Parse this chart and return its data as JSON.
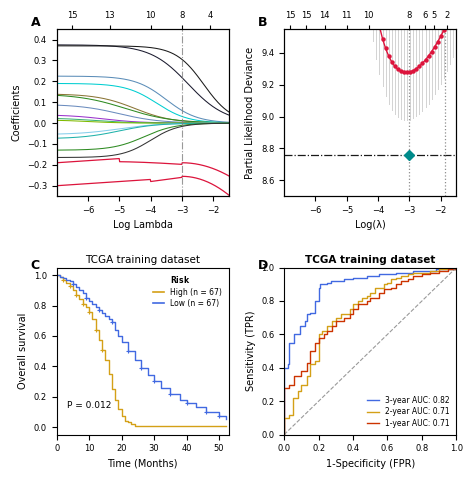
{
  "panel_A": {
    "title": "A",
    "xlabel": "Log Lambda",
    "ylabel": "Coefficients",
    "xlim": [
      -7,
      -1.5
    ],
    "ylim": [
      -0.35,
      0.45
    ],
    "top_axis_labels": [
      "15",
      "13",
      "10",
      "8",
      "4"
    ],
    "top_axis_positions": [
      -6.5,
      -5.3,
      -4.0,
      -3.0,
      -2.1
    ],
    "vline_x": -3.0,
    "xticks": [
      -6,
      -5,
      -4,
      -3,
      -2
    ],
    "yticks": [
      -0.3,
      -0.2,
      -0.1,
      0.0,
      0.1,
      0.2,
      0.3,
      0.4
    ]
  },
  "panel_B": {
    "title": "B",
    "xlabel": "Log(λ)",
    "ylabel": "Partial Likelihood Deviance",
    "xlim": [
      -7,
      -1.5
    ],
    "ylim": [
      8.5,
      9.55
    ],
    "top_axis_labels": [
      "15",
      "15",
      "14",
      "11",
      "10",
      "8",
      "6",
      "5",
      "2"
    ],
    "top_axis_positions": [
      -6.8,
      -6.3,
      -5.7,
      -5.0,
      -4.3,
      -3.0,
      -2.5,
      -2.2,
      -1.8
    ],
    "vline1_x": -3.0,
    "vline2_x": -1.85,
    "hline_y": 8.76,
    "dot_x": -3.0,
    "dot_y": 8.76,
    "xticks": [
      -6,
      -5,
      -4,
      -3,
      -2
    ],
    "yticks": [
      8.6,
      8.8,
      9.0,
      9.2,
      9.4
    ]
  },
  "panel_C": {
    "title": "TCGA training dataset",
    "panel_label": "C",
    "xlabel": "Time (Months)",
    "ylabel": "Overall survival",
    "xlim": [
      0,
      53
    ],
    "ylim": [
      -0.05,
      1.05
    ],
    "xticks": [
      0,
      10,
      20,
      30,
      40,
      50
    ],
    "yticks": [
      0.0,
      0.2,
      0.4,
      0.6,
      0.8,
      1.0
    ],
    "pvalue": "P = 0.012",
    "legend_title": "Risk",
    "high_label": "High (n = 67)",
    "low_label": "Low (n = 67)",
    "high_color": "#D4A017",
    "low_color": "#4169E1"
  },
  "panel_D": {
    "title": "TCGA training dataset",
    "panel_label": "D",
    "xlabel": "1-Specificity (FPR)",
    "ylabel": "Sensitivity (TPR)",
    "xlim": [
      0,
      1
    ],
    "ylim": [
      0,
      1
    ],
    "xticks": [
      0.0,
      0.2,
      0.4,
      0.6,
      0.8,
      1.0
    ],
    "yticks": [
      0.0,
      0.2,
      0.4,
      0.6,
      0.8,
      1.0
    ],
    "color_3yr": "#4169E1",
    "color_2yr": "#D4A017",
    "color_1yr": "#CC3300",
    "label_3yr": "3-year AUC: 0.82",
    "label_2yr": "2-year AUC: 0.71",
    "label_1yr": "1-year AUC: 0.71"
  }
}
